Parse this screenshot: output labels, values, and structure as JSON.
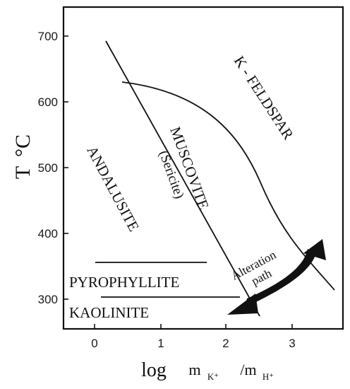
{
  "diagram": {
    "y_axis": {
      "label_main": "T",
      "label_unit": "°C",
      "ticks": [
        "700",
        "600",
        "500",
        "400",
        "300"
      ]
    },
    "x_axis": {
      "label_prefix": "log",
      "label_m1": "m",
      "label_sub1": "K⁺",
      "label_slash": "/m",
      "label_sub2": "H⁺",
      "ticks": [
        "0",
        "1",
        "2",
        "3"
      ]
    },
    "fields": {
      "k_feldspar": "K - FELDSPAR",
      "muscovite": "MUSCOVITE",
      "sericite": "(Sericite)",
      "andalusite": "ANDALUSITE",
      "pyrophyllite": "PYROPHYLLITE",
      "kaolinite": "KAOLINITE"
    },
    "arrow": {
      "line1": "Alteration",
      "line2": "path"
    },
    "colors": {
      "ink": "#111111",
      "background": "#ffffff"
    }
  }
}
